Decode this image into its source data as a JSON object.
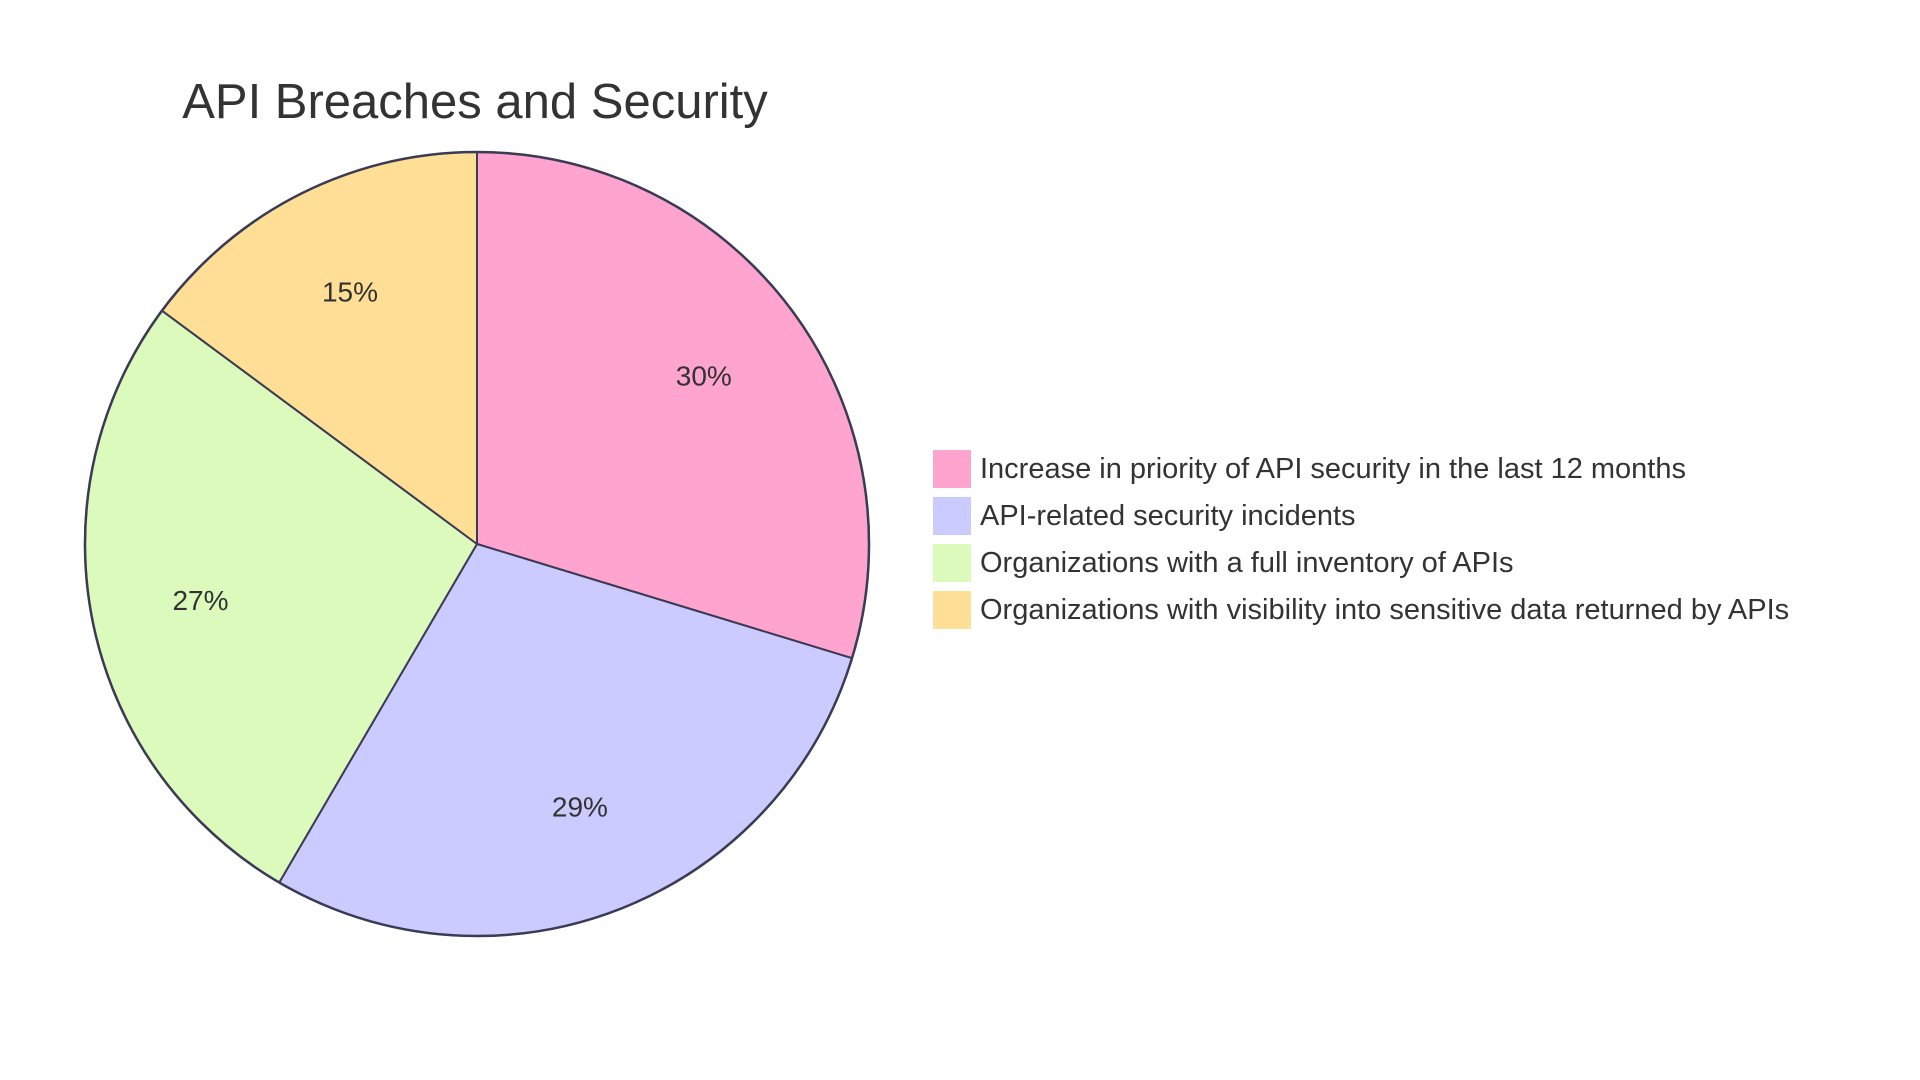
{
  "chart_data": {
    "type": "pie",
    "title": "API Breaches and Security",
    "slices": [
      {
        "name": "Increase in priority of API security in the last 12 months",
        "value": 30,
        "label": "30%",
        "color": "#ffa3cf"
      },
      {
        "name": "API-related security incidents",
        "value": 29,
        "label": "29%",
        "color": "#cbcbff"
      },
      {
        "name": "Organizations with a full inventory of APIs",
        "value": 27,
        "label": "27%",
        "color": "#dbfabb"
      },
      {
        "name": "Organizations with visibility into sensitive data returned by APIs",
        "value": 15,
        "label": "15%",
        "color": "#ffde95"
      }
    ],
    "stroke_color": "#3b3b55",
    "legend_placement": "right"
  }
}
